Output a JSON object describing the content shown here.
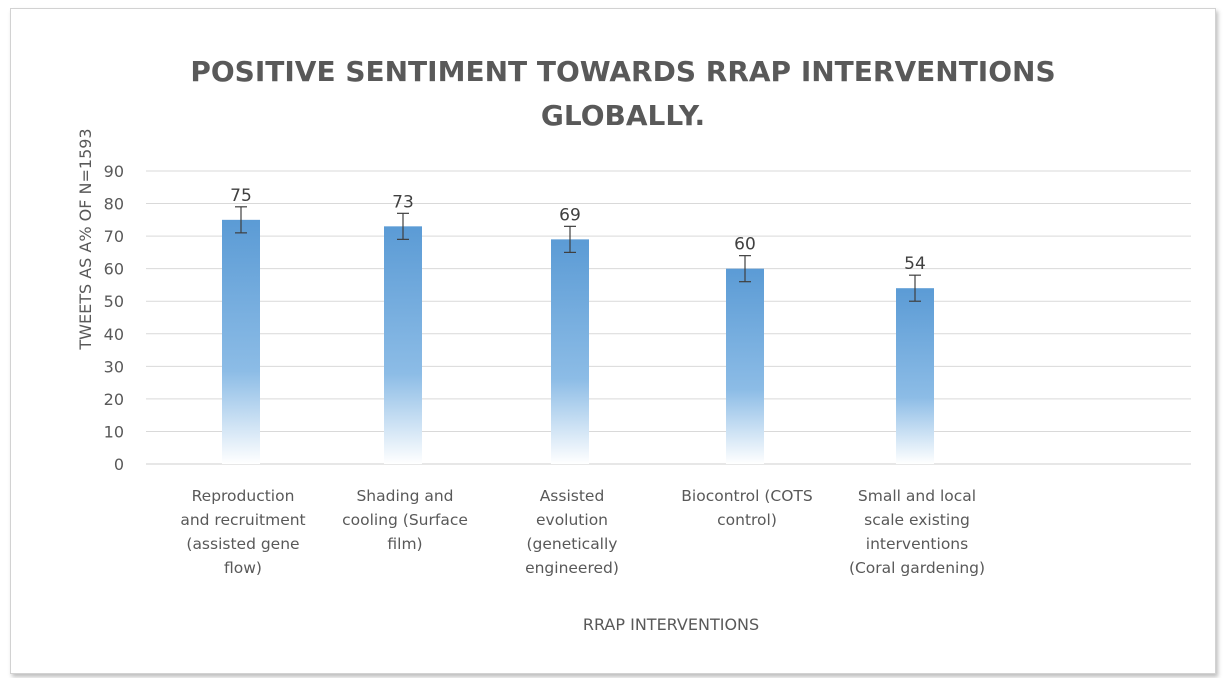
{
  "chart_data": {
    "type": "bar",
    "title": "POSITIVE SENTIMENT TOWARDS RRAP INTERVENTIONS GLOBALLY.",
    "xlabel": "RRAP INTERVENTIONS",
    "ylabel": "TWEETS AS A%  OF  N=1593",
    "ylim": [
      0,
      90
    ],
    "yticks": [
      0,
      10,
      20,
      30,
      40,
      50,
      60,
      70,
      80,
      90
    ],
    "grid": true,
    "categories": [
      "Reproduction and recruitment (assisted gene flow)",
      "Shading and cooling (Surface film)",
      "Assisted evolution (genetically engineered)",
      "Biocontrol (COTS control)",
      "Small and local scale existing interventions (Coral gardening)"
    ],
    "values": [
      75,
      73,
      69,
      60,
      54
    ],
    "error": [
      4,
      4,
      4,
      4,
      4
    ],
    "bar_color": "#5b9bd5"
  }
}
